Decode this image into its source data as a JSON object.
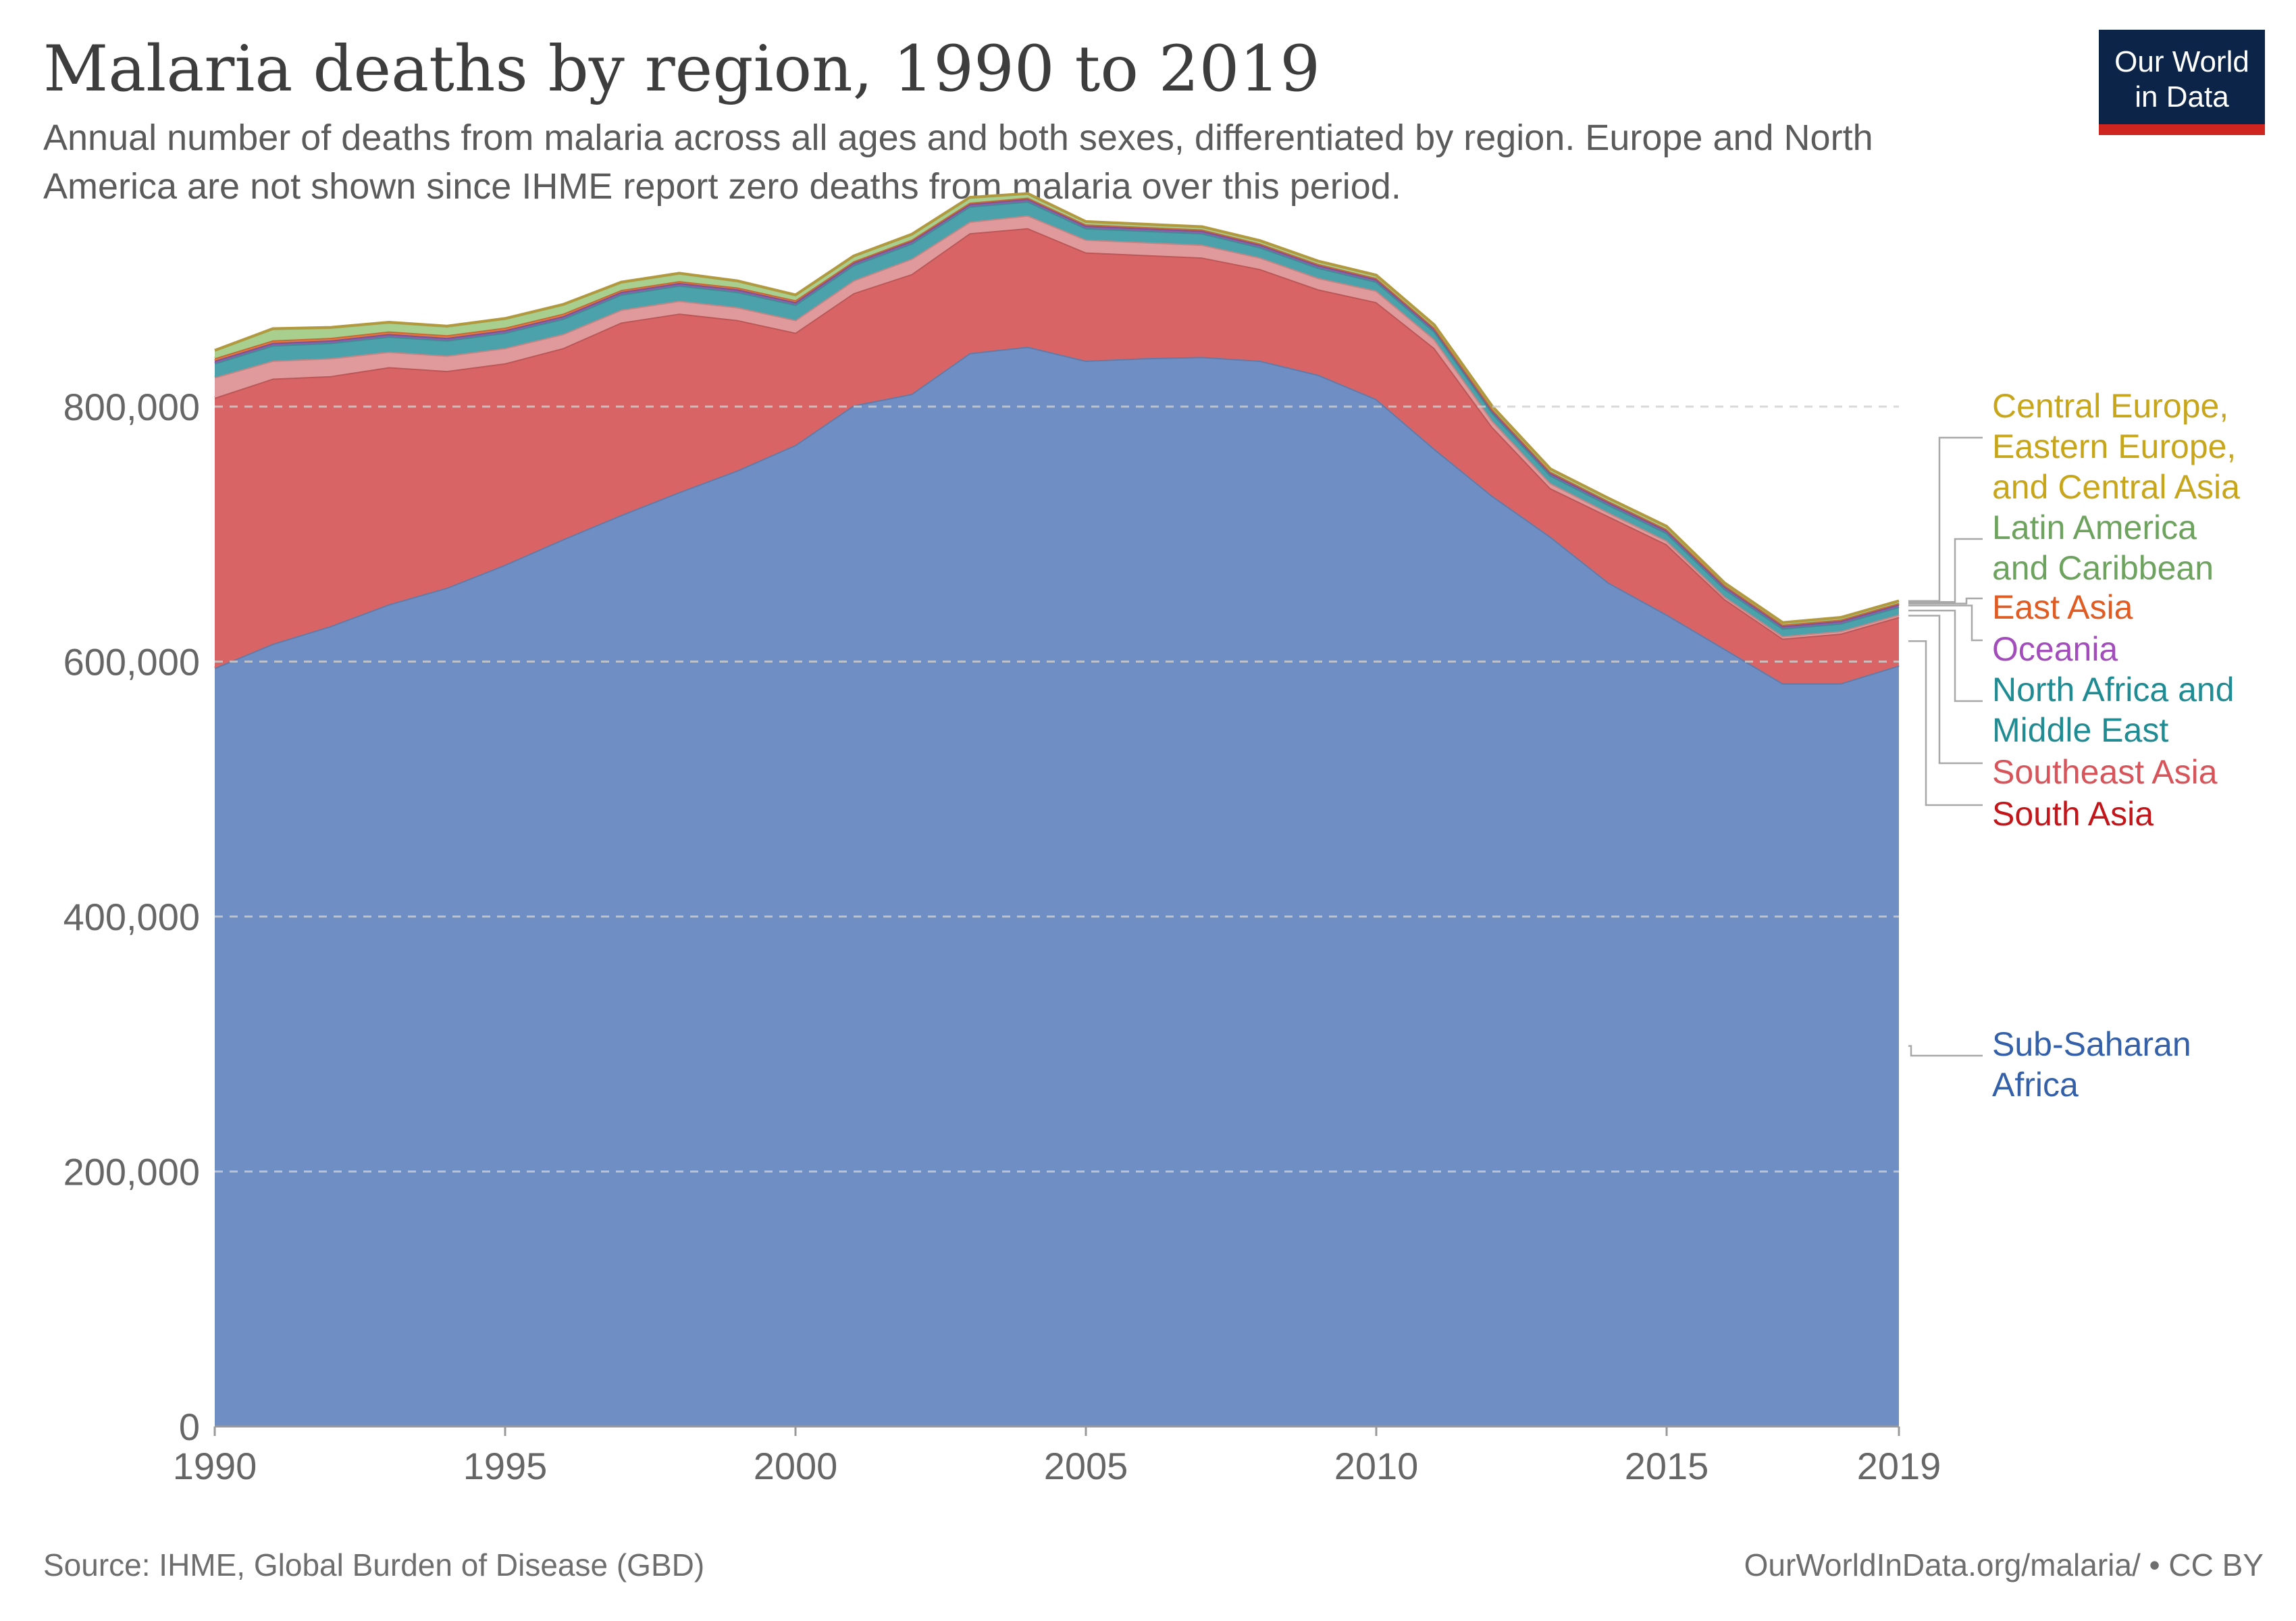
{
  "header": {
    "title": "Malaria deaths by region, 1990 to 2019",
    "subtitle": "Annual number of deaths from malaria across all ages and both sexes, differentiated by region. Europe and North America are not shown since IHME report zero deaths from malaria over this period."
  },
  "logo": {
    "line1": "Our World",
    "line2": "in Data"
  },
  "footer": {
    "source": "Source: IHME, Global Burden of Disease (GBD)",
    "credit": "OurWorldInData.org/malaria/ • CC BY"
  },
  "chart_data": {
    "type": "area",
    "stacked": true,
    "x": [
      1990,
      1991,
      1992,
      1993,
      1994,
      1995,
      1996,
      1997,
      1998,
      1999,
      2000,
      2001,
      2002,
      2003,
      2004,
      2005,
      2006,
      2007,
      2008,
      2009,
      2010,
      2011,
      2012,
      2013,
      2014,
      2015,
      2016,
      2017,
      2018,
      2019
    ],
    "xlim": [
      1990,
      2019
    ],
    "ylim": [
      0,
      960000
    ],
    "x_ticks": [
      {
        "value": 1990,
        "label": "1990"
      },
      {
        "value": 1995,
        "label": "1995"
      },
      {
        "value": 2000,
        "label": "2000"
      },
      {
        "value": 2005,
        "label": "2005"
      },
      {
        "value": 2010,
        "label": "2010"
      },
      {
        "value": 2015,
        "label": "2015"
      },
      {
        "value": 2019,
        "label": "2019"
      }
    ],
    "y_ticks": [
      {
        "value": 0,
        "label": "0"
      },
      {
        "value": 200000,
        "label": "200,000"
      },
      {
        "value": 400000,
        "label": "400,000"
      },
      {
        "value": 600000,
        "label": "600,000"
      },
      {
        "value": 800000,
        "label": "800,000"
      }
    ],
    "grid": "horizontal dashed",
    "legend_placement": "right",
    "series": [
      {
        "name": "Sub-Saharan Africa",
        "color": "#6f8ec3",
        "label_color": "#3360a9",
        "label_lines": [
          "Sub-Saharan",
          "Africa"
        ],
        "values": [
          595000,
          614000,
          628000,
          645000,
          658000,
          676000,
          696000,
          715000,
          733000,
          750000,
          770000,
          801000,
          810000,
          842000,
          847000,
          836000,
          838000,
          839000,
          836000,
          825000,
          806000,
          767000,
          730000,
          698000,
          662000,
          637000,
          610000,
          583000,
          583000,
          597000
        ]
      },
      {
        "name": "South Asia",
        "color": "#d96465",
        "label_color": "#c3161a",
        "label_lines": [
          "South Asia"
        ],
        "values": [
          212000,
          208000,
          196000,
          186000,
          170000,
          158000,
          150000,
          151000,
          140000,
          118000,
          88000,
          88000,
          94000,
          94000,
          93000,
          85000,
          81000,
          78000,
          72000,
          67000,
          76000,
          79000,
          54000,
          38000,
          52000,
          55000,
          39000,
          35000,
          39000,
          38000
        ]
      },
      {
        "name": "Southeast Asia",
        "color": "#e09a9b",
        "label_color": "#d6545a",
        "label_lines": [
          "Southeast Asia"
        ],
        "values": [
          16000,
          14000,
          14000,
          12000,
          12000,
          12000,
          11000,
          10000,
          10000,
          10000,
          10000,
          10000,
          12000,
          9000,
          10000,
          10000,
          10000,
          10000,
          9000,
          9000,
          9000,
          7000,
          5000,
          4000,
          3000,
          3000,
          2000,
          2000,
          2000,
          2000
        ]
      },
      {
        "name": "North Africa and Middle East",
        "color": "#4ba2ab",
        "label_color": "#1f8c93",
        "label_lines": [
          "North Africa and",
          "Middle East"
        ],
        "values": [
          11000,
          12000,
          12000,
          12000,
          12000,
          12000,
          12000,
          12000,
          12000,
          12000,
          12000,
          12000,
          12000,
          12000,
          11000,
          9000,
          9000,
          9000,
          8000,
          8000,
          7000,
          6000,
          6000,
          6000,
          6000,
          6000,
          6000,
          6000,
          6000,
          6000
        ]
      },
      {
        "name": "Oceania",
        "color": "#8e5fa8",
        "label_color": "#a24dbb",
        "label_lines": [
          "Oceania"
        ],
        "values": [
          2000,
          2000,
          2000,
          2000,
          2000,
          2000,
          2000,
          2000,
          2000,
          2000,
          2000,
          2000,
          2000,
          2000,
          2000,
          2000,
          2000,
          2000,
          2000,
          2000,
          2000,
          2000,
          2000,
          2000,
          2000,
          2000,
          2000,
          2000,
          2000,
          2000
        ]
      },
      {
        "name": "East Asia",
        "color": "#e6793f",
        "label_color": "#e05c23",
        "label_lines": [
          "East Asia"
        ],
        "values": [
          2000,
          2000,
          2000,
          2000,
          2000,
          2000,
          2000,
          1500,
          1500,
          1500,
          1500,
          1000,
          1000,
          1000,
          1000,
          1000,
          1000,
          1000,
          1000,
          1000,
          1000,
          1000,
          1000,
          1000,
          1000,
          1000,
          1000,
          1000,
          1000,
          1000
        ]
      },
      {
        "name": "Latin America and Caribbean",
        "color": "#a8cf8e",
        "label_color": "#6da35e",
        "label_lines": [
          "Latin America",
          "and Caribbean"
        ],
        "values": [
          6000,
          9000,
          8000,
          7000,
          7000,
          7000,
          7000,
          6000,
          6000,
          5000,
          4000,
          4000,
          4000,
          4000,
          3000,
          2000,
          2000,
          2000,
          2000,
          2000,
          2000,
          2000,
          2000,
          2000,
          2000,
          2000,
          1500,
          1500,
          1500,
          1500
        ]
      },
      {
        "name": "Central Europe, Eastern Europe, and Central Asia",
        "color": "#d4b041",
        "label_color": "#c8a61c",
        "label_lines": [
          "Central Europe,",
          "Eastern Europe,",
          "and Central Asia"
        ],
        "values": [
          200,
          200,
          200,
          200,
          200,
          200,
          200,
          200,
          200,
          200,
          200,
          200,
          200,
          200,
          200,
          200,
          200,
          200,
          200,
          200,
          200,
          200,
          200,
          200,
          200,
          200,
          200,
          200,
          200,
          200
        ]
      }
    ]
  }
}
